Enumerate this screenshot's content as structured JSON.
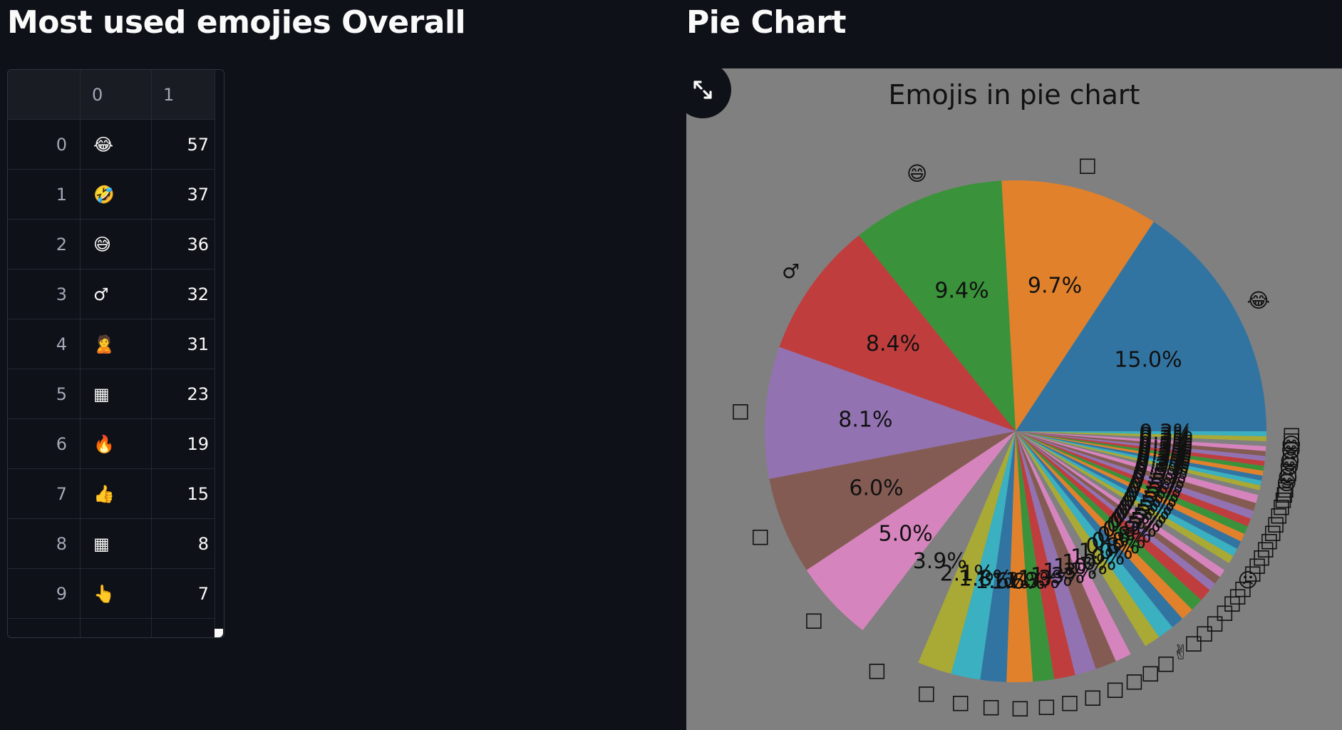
{
  "left": {
    "title": "Most used emojies Overall",
    "table": {
      "columns": [
        "",
        "0",
        "1"
      ],
      "rows": [
        {
          "index": "0",
          "emoji": "😂",
          "count": "57"
        },
        {
          "index": "1",
          "emoji": "🤣",
          "count": "37"
        },
        {
          "index": "2",
          "emoji": "😅",
          "count": "36"
        },
        {
          "index": "3",
          "emoji": "♂",
          "count": "32"
        },
        {
          "index": "4",
          "emoji": "🙎",
          "count": "31"
        },
        {
          "index": "5",
          "emoji": "▦",
          "count": "23"
        },
        {
          "index": "6",
          "emoji": "🔥",
          "count": "19"
        },
        {
          "index": "7",
          "emoji": "👍",
          "count": "15"
        },
        {
          "index": "8",
          "emoji": "▦",
          "count": "8"
        },
        {
          "index": "9",
          "emoji": "👆",
          "count": "7"
        }
      ]
    }
  },
  "right": {
    "title": "Pie Chart",
    "expand_icon": "expand-arrows-icon"
  },
  "colors": {
    "page_bg": "#0e1117",
    "chart_bg": "#808080",
    "text": "#fafafa",
    "index_text": "#a3a8b4"
  },
  "chart_data": {
    "type": "pie",
    "title": "Emojis in pie chart",
    "start_angle_deg": 0,
    "direction": "counterclockwise",
    "slices": [
      {
        "label": "😂",
        "pct": 15.0,
        "pct_label": "15.0%",
        "color": "#3274a1"
      },
      {
        "label": "□",
        "pct": 9.7,
        "pct_label": "9.7%",
        "color": "#e1812c"
      },
      {
        "label": "😄",
        "pct": 9.4,
        "pct_label": "9.4%",
        "color": "#3a923a"
      },
      {
        "label": "♂",
        "pct": 8.4,
        "pct_label": "8.4%",
        "color": "#c03d3e"
      },
      {
        "label": "□",
        "pct": 8.1,
        "pct_label": "8.1%",
        "color": "#9372b2"
      },
      {
        "label": "□",
        "pct": 6.0,
        "pct_label": "6.0%",
        "color": "#845b53"
      },
      {
        "label": "□",
        "pct": 5.0,
        "pct_label": "5.0%",
        "color": "#d684bd"
      },
      {
        "label": "□",
        "pct": 3.9,
        "pct_label": "3.9%",
        "color": "#808080"
      },
      {
        "label": "□",
        "pct": 2.1,
        "pct_label": "2.1%",
        "color": "#a9aa35"
      },
      {
        "label": "□",
        "pct": 1.8,
        "pct_label": "1.8%",
        "color": "#3ab0c0"
      },
      {
        "label": "□",
        "pct": 1.6,
        "pct_label": "1.6%",
        "color": "#3274a1"
      },
      {
        "label": "□",
        "pct": 1.6,
        "pct_label": "1.6%",
        "color": "#e1812c"
      },
      {
        "label": "□",
        "pct": 1.3,
        "pct_label": "1.3%",
        "color": "#3a923a"
      },
      {
        "label": "□",
        "pct": 1.3,
        "pct_label": "1.3%",
        "color": "#c03d3e"
      },
      {
        "label": "□",
        "pct": 1.3,
        "pct_label": "1.3%",
        "color": "#9372b2"
      },
      {
        "label": "□",
        "pct": 1.3,
        "pct_label": "1.3%",
        "color": "#845b53"
      },
      {
        "label": "□",
        "pct": 1.0,
        "pct_label": "1.0%",
        "color": "#d684bd"
      },
      {
        "label": "□",
        "pct": 1.0,
        "pct_label": "1.0%",
        "color": "#808080"
      },
      {
        "label": "□",
        "pct": 1.0,
        "pct_label": "1.0%",
        "color": "#a9aa35"
      },
      {
        "label": "✌",
        "pct": 1.0,
        "pct_label": "1.0%",
        "color": "#3ab0c0"
      },
      {
        "label": "□",
        "pct": 0.8,
        "pct_label": "0.8%",
        "color": "#3274a1"
      },
      {
        "label": "□",
        "pct": 0.8,
        "pct_label": "0.8%",
        "color": "#e1812c"
      },
      {
        "label": "□",
        "pct": 0.8,
        "pct_label": "0.8%",
        "color": "#3a923a"
      },
      {
        "label": "□",
        "pct": 0.8,
        "pct_label": "0.8%",
        "color": "#c03d3e"
      },
      {
        "label": "□",
        "pct": 0.5,
        "pct_label": "0.5%",
        "color": "#9372b2"
      },
      {
        "label": "□",
        "pct": 0.5,
        "pct_label": "0.5%",
        "color": "#845b53"
      },
      {
        "label": "□",
        "pct": 0.5,
        "pct_label": "0.5%",
        "color": "#d684bd"
      },
      {
        "label": "☹",
        "pct": 0.5,
        "pct_label": "0.5%",
        "color": "#808080"
      },
      {
        "label": "□",
        "pct": 0.5,
        "pct_label": "0.5%",
        "color": "#a9aa35"
      },
      {
        "label": "□",
        "pct": 0.5,
        "pct_label": "0.5%",
        "color": "#3ab0c0"
      },
      {
        "label": "□",
        "pct": 0.5,
        "pct_label": "0.5%",
        "color": "#3274a1"
      },
      {
        "label": "□",
        "pct": 0.5,
        "pct_label": "0.5%",
        "color": "#e1812c"
      },
      {
        "label": "□",
        "pct": 0.5,
        "pct_label": "0.5%",
        "color": "#3a923a"
      },
      {
        "label": "□",
        "pct": 0.5,
        "pct_label": "0.5%",
        "color": "#c03d3e"
      },
      {
        "label": "□",
        "pct": 0.5,
        "pct_label": "0.5%",
        "color": "#9372b2"
      },
      {
        "label": "□",
        "pct": 0.5,
        "pct_label": "0.5%",
        "color": "#845b53"
      },
      {
        "label": "□",
        "pct": 0.5,
        "pct_label": "0.5%",
        "color": "#d684bd"
      },
      {
        "label": "□",
        "pct": 0.3,
        "pct_label": "0.3%",
        "color": "#808080"
      },
      {
        "label": "□",
        "pct": 0.3,
        "pct_label": "0.3%",
        "color": "#a9aa35"
      },
      {
        "label": "□",
        "pct": 0.3,
        "pct_label": "0.3%",
        "color": "#3ab0c0"
      },
      {
        "label": "😊",
        "pct": 0.3,
        "pct_label": "0.3%",
        "color": "#3274a1"
      },
      {
        "label": "😊",
        "pct": 0.3,
        "pct_label": "0.3%",
        "color": "#e1812c"
      },
      {
        "label": "□",
        "pct": 0.3,
        "pct_label": "0.3%",
        "color": "#3a923a"
      },
      {
        "label": "😊",
        "pct": 0.3,
        "pct_label": "0.3%",
        "color": "#c03d3e"
      },
      {
        "label": "😊",
        "pct": 0.3,
        "pct_label": "0.3%",
        "color": "#9372b2"
      },
      {
        "label": "□",
        "pct": 0.3,
        "pct_label": "0.3%",
        "color": "#845b53"
      },
      {
        "label": "😊",
        "pct": 0.3,
        "pct_label": "0.3%",
        "color": "#d684bd"
      },
      {
        "label": "😊",
        "pct": 0.3,
        "pct_label": "0.3%",
        "color": "#808080"
      },
      {
        "label": "□",
        "pct": 0.3,
        "pct_label": "0.3%",
        "color": "#a9aa35"
      },
      {
        "label": "□",
        "pct": 0.3,
        "pct_label": "0.3%",
        "color": "#3ab0c0"
      }
    ]
  }
}
